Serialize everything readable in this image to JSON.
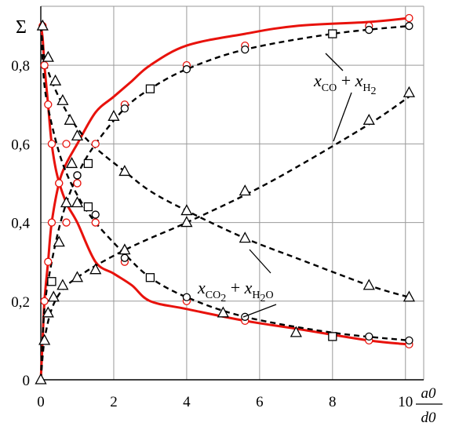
{
  "chart_data": {
    "type": "line",
    "xlabel_num": "a0",
    "xlabel_den": "d0",
    "ylabel": "Σ",
    "xlim": [
      0,
      10.5
    ],
    "ylim": [
      0,
      0.95
    ],
    "x_ticks": [
      0,
      2,
      4,
      6,
      8,
      10
    ],
    "x_tick_labels": [
      "0",
      "2",
      "4",
      "6",
      "8",
      "10"
    ],
    "y_ticks": [
      0,
      0.2,
      0.4,
      0.6,
      0.8
    ],
    "y_tick_labels": [
      "0",
      "0,2",
      "0,4",
      "0,6",
      "0,8"
    ],
    "grid": true,
    "annotations": [
      {
        "base1": "x",
        "sub1": "CO",
        "plus": "+",
        "base2": "x",
        "sub2": "H",
        "subsub2": "2"
      },
      {
        "base1": "x",
        "sub1": "CO",
        "subsub1": "2",
        "plus": "+",
        "base2": "x",
        "sub2": "H",
        "subsub2": "2",
        "sub2b": "O"
      }
    ],
    "series": [
      {
        "style": "red-solid",
        "marker": "circle-red",
        "x": [
          0,
          0.05,
          0.1,
          0.2,
          0.3,
          0.45,
          0.7,
          1.0,
          1.5,
          2.0,
          2.5,
          3.0,
          4.0,
          5.6,
          7.0,
          9.0,
          10.1
        ],
        "y": [
          0.9,
          0.87,
          0.8,
          0.7,
          0.6,
          0.52,
          0.45,
          0.4,
          0.3,
          0.27,
          0.24,
          0.2,
          0.18,
          0.15,
          0.13,
          0.1,
          0.09
        ],
        "markers_x": [
          0.05,
          0.1,
          0.2,
          0.3,
          0.5,
          0.7,
          1.0,
          1.5,
          2.3,
          4.0,
          5.6,
          9.0,
          10.1
        ],
        "markers_y": [
          0.9,
          0.8,
          0.7,
          0.6,
          0.5,
          0.4,
          0.5,
          0.4,
          0.3,
          0.2,
          0.15,
          0.1,
          0.09
        ]
      },
      {
        "style": "red-solid",
        "marker": "circle-red",
        "x": [
          0,
          0.05,
          0.1,
          0.2,
          0.3,
          0.5,
          0.7,
          1.0,
          1.5,
          2.0,
          2.5,
          3.0,
          4.0,
          5.6,
          7.0,
          9.0,
          10.1
        ],
        "y": [
          0,
          0.1,
          0.2,
          0.3,
          0.4,
          0.5,
          0.55,
          0.6,
          0.68,
          0.72,
          0.76,
          0.8,
          0.85,
          0.88,
          0.9,
          0.91,
          0.92
        ],
        "markers_x": [
          0.1,
          0.2,
          0.3,
          0.5,
          0.7,
          1.0,
          1.5,
          2.3,
          4.0,
          5.6,
          9.0,
          10.1
        ],
        "markers_y": [
          0.2,
          0.3,
          0.4,
          0.5,
          0.6,
          0.5,
          0.6,
          0.7,
          0.8,
          0.85,
          0.9,
          0.92
        ]
      },
      {
        "style": "black-dashed",
        "marker": "circle-black",
        "x": [
          0,
          0.1,
          0.3,
          0.6,
          1.0,
          1.5,
          2.3,
          3.0,
          4.0,
          5.6,
          8.0,
          10.1
        ],
        "y": [
          0,
          0.18,
          0.3,
          0.42,
          0.52,
          0.6,
          0.69,
          0.74,
          0.79,
          0.84,
          0.88,
          0.9
        ],
        "markers_x": [
          1.0,
          1.5,
          2.3,
          4.0,
          5.6,
          9.0,
          10.1
        ],
        "markers_y": [
          0.52,
          0.42,
          0.69,
          0.79,
          0.84,
          0.89,
          0.9
        ]
      },
      {
        "style": "black-dashed",
        "marker": "circle-black",
        "x": [
          0,
          0.1,
          0.3,
          0.6,
          1.0,
          1.5,
          2.3,
          3.0,
          4.0,
          5.6,
          8.0,
          10.1
        ],
        "y": [
          0.9,
          0.75,
          0.65,
          0.55,
          0.47,
          0.4,
          0.32,
          0.26,
          0.21,
          0.16,
          0.12,
          0.1
        ],
        "markers_x": [
          1.0,
          2.3,
          4.0,
          5.6,
          9.0,
          10.1
        ],
        "markers_y": [
          0.52,
          0.31,
          0.21,
          0.16,
          0.11,
          0.1
        ]
      },
      {
        "style": "black-dashed",
        "marker": "triangle",
        "x": [
          0,
          0.1,
          0.3,
          0.6,
          1.0,
          1.5,
          2.3,
          3.0,
          4.0,
          5.6,
          7.0,
          9.0,
          10.1
        ],
        "y": [
          0.9,
          0.82,
          0.76,
          0.7,
          0.64,
          0.59,
          0.53,
          0.48,
          0.43,
          0.36,
          0.31,
          0.24,
          0.21
        ],
        "markers_x": [
          0.05,
          0.2,
          0.4,
          0.6,
          0.8,
          1.0,
          2.3,
          4.0,
          5.6,
          9.0,
          10.1
        ],
        "markers_y": [
          0.9,
          0.82,
          0.76,
          0.71,
          0.66,
          0.62,
          0.53,
          0.43,
          0.36,
          0.24,
          0.21
        ]
      },
      {
        "style": "black-dashed",
        "marker": "triangle",
        "x": [
          0,
          0.1,
          0.3,
          0.6,
          1.0,
          1.5,
          2.3,
          3.0,
          4.0,
          5.6,
          7.0,
          9.0,
          10.1
        ],
        "y": [
          0,
          0.1,
          0.18,
          0.23,
          0.26,
          0.29,
          0.33,
          0.36,
          0.4,
          0.47,
          0.54,
          0.65,
          0.72
        ],
        "markers_x": [
          0,
          0.1,
          0.2,
          0.35,
          0.6,
          1.0,
          1.5,
          2.3,
          4.0,
          5.6,
          9.0,
          10.1
        ],
        "markers_y": [
          0,
          0.1,
          0.17,
          0.21,
          0.24,
          0.26,
          0.28,
          0.33,
          0.4,
          0.48,
          0.66,
          0.73
        ]
      },
      {
        "style": "none",
        "marker": "triangle",
        "markers_x": [
          0.5,
          0.7,
          0.85,
          1.0,
          2.0,
          5.0,
          7.0
        ],
        "markers_y": [
          0.35,
          0.45,
          0.55,
          0.45,
          0.67,
          0.17,
          0.12
        ]
      },
      {
        "style": "none",
        "marker": "square",
        "markers_x": [
          0.3,
          1.3,
          1.3,
          3.0,
          3.0,
          8.0,
          8.0
        ],
        "markers_y": [
          0.25,
          0.44,
          0.55,
          0.26,
          0.74,
          0.11,
          0.88
        ]
      }
    ]
  }
}
